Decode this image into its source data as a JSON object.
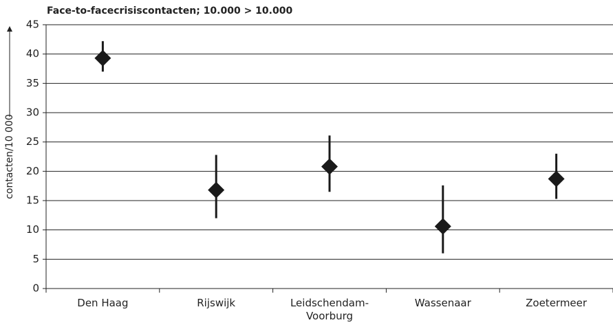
{
  "chart_data": {
    "type": "errorbar",
    "title": "Face-to-facecrisiscontacten; 10.000 > 10.000",
    "y_label": "contacten/10 000",
    "categories": [
      "Den Haag",
      "Rijswijk",
      "Leidschendam-Voorburg",
      "Wassenaar",
      "Zoetermeer"
    ],
    "values": [
      39.3,
      16.8,
      20.8,
      10.6,
      18.7
    ],
    "lower": [
      37,
      12,
      16.5,
      6,
      15.3
    ],
    "upper": [
      42.2,
      22.8,
      26.1,
      17.6,
      23
    ],
    "color": "#1a1a1a",
    "ylim": [
      0,
      45
    ],
    "yticks": [
      0,
      5,
      10,
      15,
      20,
      25,
      30,
      35,
      40,
      45
    ],
    "grid": true
  }
}
